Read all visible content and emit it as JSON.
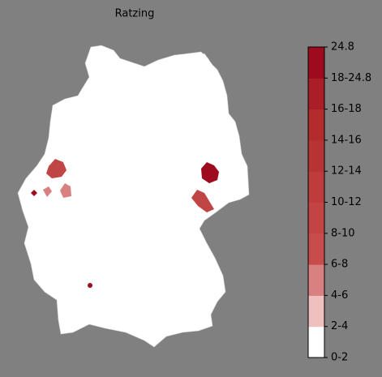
{
  "title": "Ratzing",
  "colorbar": {
    "ticks": [
      "0-2",
      "2-4",
      "4-6",
      "6-8",
      "8-10",
      "10-12",
      "12-14",
      "14-16",
      "16-18",
      "18-24.8",
      "24.8"
    ],
    "colors": [
      "#ffffff",
      "#efc0c0",
      "#d98080",
      "#c84c4c",
      "#c34444",
      "#be3c3c",
      "#b83434",
      "#b22c2c",
      "#aa1e28",
      "#9e0a1e"
    ]
  }
}
